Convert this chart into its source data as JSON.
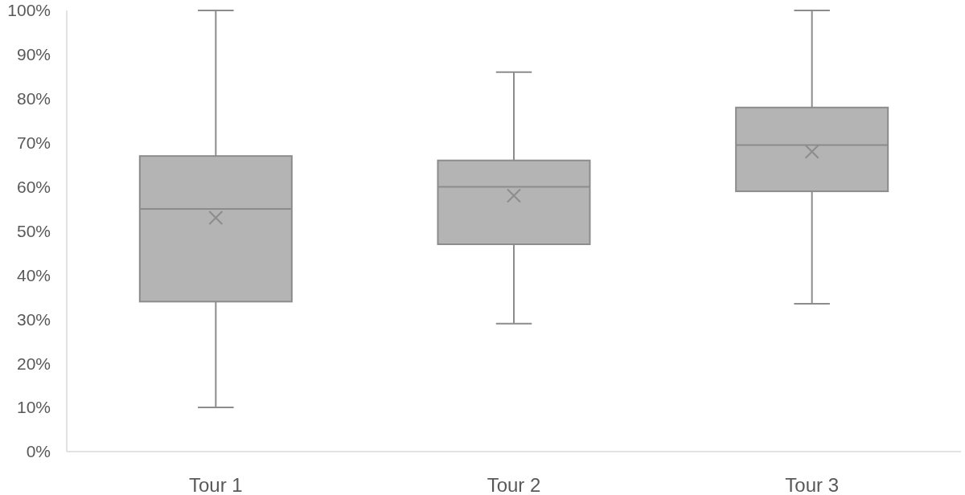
{
  "chart_data": {
    "type": "box",
    "categories": [
      "Tour 1",
      "Tour 2",
      "Tour 3"
    ],
    "color": "#b4b4b4",
    "boxes": [
      {
        "low": 10,
        "q1": 34,
        "median": 55,
        "q3": 67,
        "high": 100,
        "mean": 53
      },
      {
        "low": 29,
        "q1": 47,
        "median": 60,
        "q3": 66,
        "high": 86,
        "mean": 58
      },
      {
        "low": 33.5,
        "q1": 59,
        "median": 69.5,
        "q3": 78,
        "high": 100,
        "mean": 68
      }
    ],
    "ylim": [
      0,
      100
    ],
    "yticks": [
      {
        "value": 0,
        "label": "0%"
      },
      {
        "value": 10,
        "label": "10%"
      },
      {
        "value": 20,
        "label": "20%"
      },
      {
        "value": 30,
        "label": "30%"
      },
      {
        "value": 40,
        "label": "40%"
      },
      {
        "value": 50,
        "label": "50%"
      },
      {
        "value": 60,
        "label": "60%"
      },
      {
        "value": 70,
        "label": "70%"
      },
      {
        "value": 80,
        "label": "80%"
      },
      {
        "value": 90,
        "label": "90%"
      },
      {
        "value": 100,
        "label": "100%"
      }
    ]
  }
}
